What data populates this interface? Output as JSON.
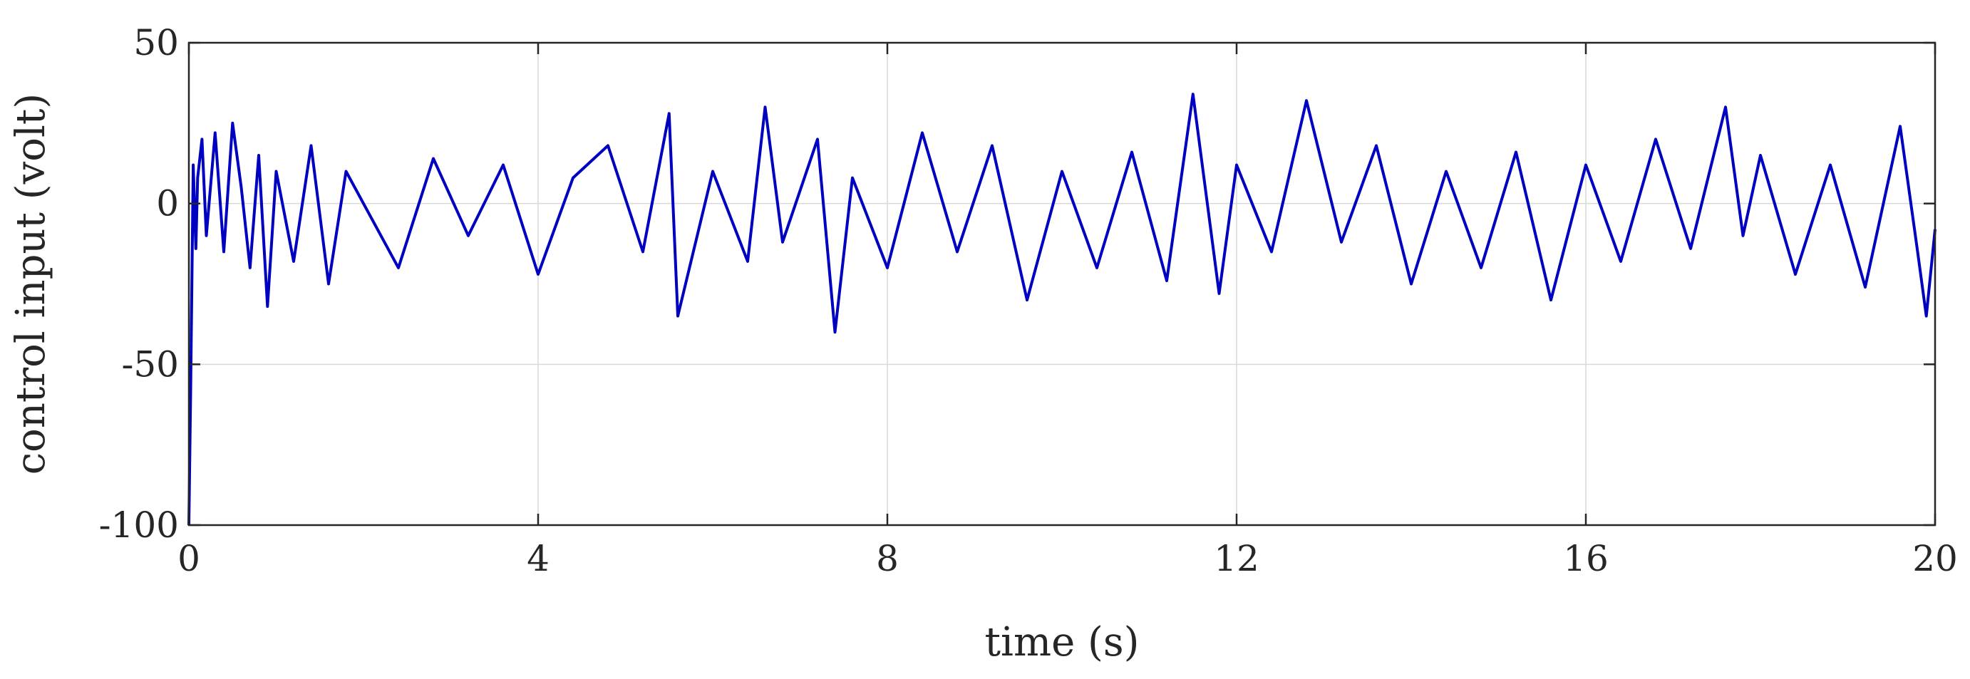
{
  "chart_data": {
    "type": "line",
    "title": "",
    "xlabel": "time (s)",
    "ylabel": "control input (volt)",
    "xlim": [
      0,
      20
    ],
    "ylim": [
      -100,
      50
    ],
    "xticks": [
      0,
      4,
      8,
      12,
      16,
      20
    ],
    "yticks": [
      -100,
      -50,
      0,
      50
    ],
    "xtick_labels": [
      "0",
      "4",
      "8",
      "12",
      "16",
      "20"
    ],
    "ytick_labels": [
      "-100",
      "-50",
      "0",
      "50"
    ],
    "grid": true,
    "legend": "none",
    "colors": {
      "series": "#0000c0",
      "grid": "#d9d9d9",
      "axes": "#262626",
      "background": "#ffffff"
    },
    "series": [
      {
        "x": [
          0,
          0.02,
          0.05,
          0.08,
          0.1,
          0.15,
          0.2,
          0.3,
          0.4,
          0.5,
          0.6,
          0.7,
          0.8,
          0.9,
          1.0,
          1.2,
          1.4,
          1.6,
          1.8,
          2.0,
          2.4,
          2.8,
          3.2,
          3.6,
          4.0,
          4.4,
          4.8,
          5.2,
          5.5,
          5.6,
          6.0,
          6.4,
          6.6,
          6.8,
          7.2,
          7.4,
          7.6,
          8.0,
          8.4,
          8.8,
          9.2,
          9.6,
          10.0,
          10.4,
          10.8,
          11.2,
          11.5,
          11.8,
          12.0,
          12.4,
          12.8,
          13.2,
          13.6,
          14.0,
          14.4,
          14.8,
          15.2,
          15.6,
          16.0,
          16.4,
          16.8,
          17.2,
          17.6,
          17.8,
          18.0,
          18.4,
          18.8,
          19.2,
          19.6,
          19.8,
          19.9,
          20.0
        ],
        "y": [
          -100,
          -60,
          12,
          -14,
          8,
          20,
          -10,
          22,
          -15,
          25,
          5,
          -20,
          15,
          -32,
          10,
          -18,
          18,
          -25,
          10,
          0,
          -20,
          14,
          -10,
          12,
          -22,
          8,
          18,
          -15,
          28,
          -35,
          10,
          -18,
          30,
          -12,
          20,
          -40,
          8,
          -20,
          22,
          -15,
          18,
          -30,
          10,
          -20,
          16,
          -24,
          34,
          -28,
          12,
          -15,
          32,
          -12,
          18,
          -25,
          10,
          -20,
          16,
          -30,
          12,
          -18,
          20,
          -14,
          30,
          -10,
          15,
          -22,
          12,
          -26,
          24,
          -15,
          -35,
          -8
        ]
      }
    ]
  }
}
